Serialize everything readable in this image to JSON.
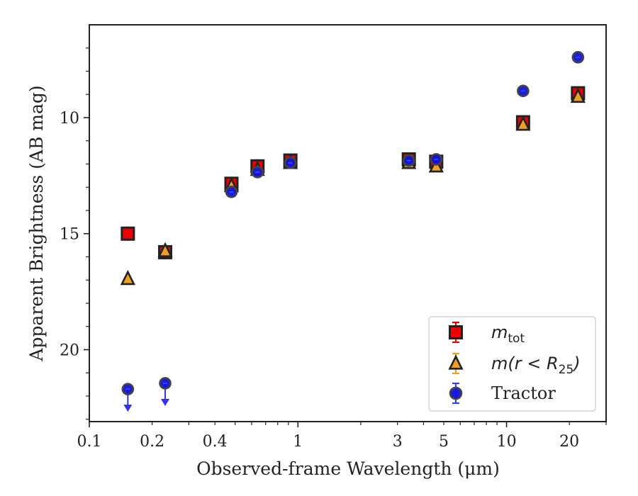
{
  "chart_data": {
    "type": "scatter",
    "xlabel": "Observed-frame Wavelength (μm)",
    "ylabel": "Apparent Brightness (AB mag)",
    "xscale": "log",
    "xlim": [
      0.1,
      30
    ],
    "ylim": [
      23.1,
      6.0
    ],
    "y_inverted": true,
    "x_ticks": [
      0.1,
      0.2,
      0.4,
      1,
      3,
      5,
      10,
      20
    ],
    "x_tick_labels": [
      "0.1",
      "0.2",
      "0.4",
      "1",
      "3",
      "5",
      "10",
      "20"
    ],
    "y_ticks": [
      10,
      15,
      20
    ],
    "y_tick_labels": [
      "10",
      "15",
      "20"
    ],
    "legend_position": "lower right",
    "series": [
      {
        "name": "m_tot",
        "label_main": "m",
        "label_sub": "tot",
        "marker": "square",
        "color": "#ee0000",
        "edge": "#222222",
        "points": [
          {
            "x": 0.153,
            "y": 15.0
          },
          {
            "x": 0.231,
            "y": 15.8
          },
          {
            "x": 0.48,
            "y": 12.85
          },
          {
            "x": 0.64,
            "y": 12.1
          },
          {
            "x": 0.92,
            "y": 11.85
          },
          {
            "x": 3.4,
            "y": 11.8
          },
          {
            "x": 4.6,
            "y": 11.9
          },
          {
            "x": 12.0,
            "y": 10.2
          },
          {
            "x": 22.0,
            "y": 8.95
          }
        ]
      },
      {
        "name": "m(r < R_25)",
        "label_main": "m(r < R",
        "label_sub": "25",
        "label_end": ")",
        "marker": "triangle",
        "color": "#f0a020",
        "edge": "#222222",
        "points": [
          {
            "x": 0.153,
            "y": 16.95
          },
          {
            "x": 0.231,
            "y": 15.75
          },
          {
            "x": 0.48,
            "y": 12.95
          },
          {
            "x": 0.64,
            "y": 12.25
          },
          {
            "x": 0.92,
            "y": 11.95
          },
          {
            "x": 3.4,
            "y": 11.95
          },
          {
            "x": 4.6,
            "y": 12.1
          },
          {
            "x": 12.0,
            "y": 10.3
          },
          {
            "x": 22.0,
            "y": 9.1
          }
        ]
      },
      {
        "name": "Tractor",
        "label_main": "Tractor",
        "marker": "circle",
        "color": "#1111dd",
        "edge": "#444444",
        "points": [
          {
            "x": 0.153,
            "y": 21.7,
            "upper_limit": true
          },
          {
            "x": 0.231,
            "y": 21.45,
            "upper_limit": true
          },
          {
            "x": 0.48,
            "y": 13.2
          },
          {
            "x": 0.64,
            "y": 12.35
          },
          {
            "x": 0.92,
            "y": 11.95
          },
          {
            "x": 3.4,
            "y": 11.85
          },
          {
            "x": 4.6,
            "y": 11.8
          },
          {
            "x": 12.0,
            "y": 8.85
          },
          {
            "x": 22.0,
            "y": 7.4
          }
        ]
      }
    ]
  }
}
